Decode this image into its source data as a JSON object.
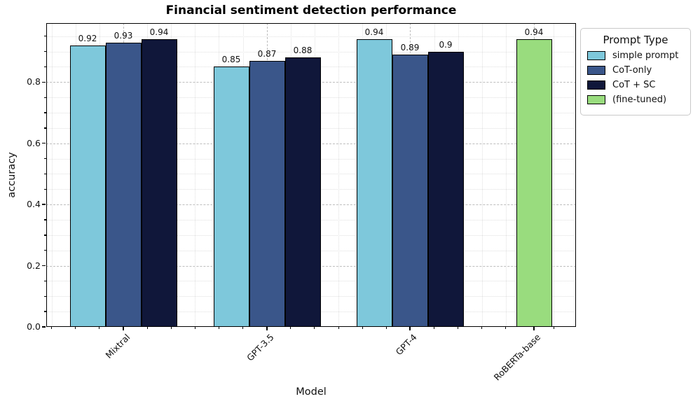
{
  "chart_data": {
    "type": "bar",
    "title": "Financial sentiment detection performance",
    "xlabel": "Model",
    "ylabel": "accuracy",
    "categories": [
      "Mixtral",
      "GPT-3.5",
      "GPT-4",
      "RoBERTa-base"
    ],
    "series": [
      {
        "name": "simple prompt",
        "color": "#7EC8DB",
        "values": [
          0.92,
          0.85,
          0.94,
          null
        ]
      },
      {
        "name": "CoT-only",
        "color": "#3A568A",
        "values": [
          0.93,
          0.87,
          0.89,
          null
        ]
      },
      {
        "name": "CoT + SC",
        "color": "#10173A",
        "values": [
          0.94,
          0.88,
          0.9,
          null
        ]
      },
      {
        "name": "(fine-tuned)",
        "color": "#99DC7E",
        "values": [
          null,
          null,
          null,
          0.94
        ]
      }
    ],
    "bar_value_labels": [
      [
        "0.92",
        "0.93",
        "0.94"
      ],
      [
        "0.85",
        "0.87",
        "0.88"
      ],
      [
        "0.94",
        "0.89",
        "0.9"
      ],
      [
        "0.94"
      ]
    ],
    "legend_title": "Prompt Type",
    "legend_position": "upper right, outside plot",
    "yticks": [
      "0.0",
      "0.2",
      "0.4",
      "0.6",
      "0.8"
    ],
    "ylim": [
      0,
      0.993
    ],
    "grid": "major dashed + minor dotted, both axes",
    "edge_color": "#000000"
  }
}
